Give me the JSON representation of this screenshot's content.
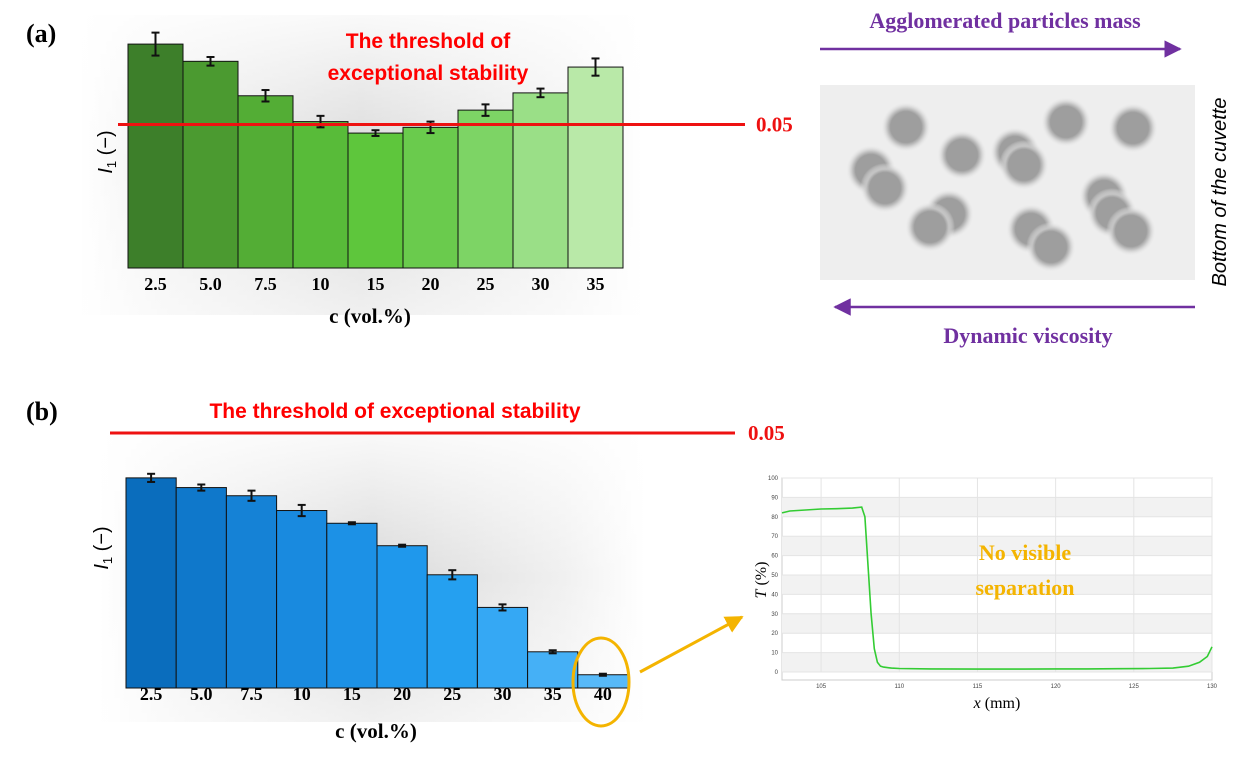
{
  "panel_a": {
    "label": "(a)",
    "threshold_text_line1": "The threshold of",
    "threshold_text_line2": "exceptional stability",
    "threshold_value": "0.05",
    "arrow_top_label": "Agglomerated particles mass",
    "arrow_bottom_label": "Dynamic viscosity",
    "cuvette_label": "Bottom of the cuvette"
  },
  "panel_b": {
    "label": "(b)",
    "threshold_text": "The threshold of exceptional stability",
    "threshold_value": "0.05",
    "annotation": "No visible separation"
  },
  "chart_data": [
    {
      "type": "bar",
      "id": "a",
      "title": "",
      "xlabel": "c (vol.%)",
      "ylabel": "I1 (−)",
      "categories": [
        "2.5",
        "5.0",
        "7.5",
        "10",
        "15",
        "20",
        "25",
        "30",
        "35"
      ],
      "values": [
        0.078,
        0.072,
        0.06,
        0.051,
        0.047,
        0.049,
        0.055,
        0.061,
        0.07
      ],
      "errors": [
        0.004,
        0.0015,
        0.002,
        0.002,
        0.001,
        0.002,
        0.002,
        0.0015,
        0.003
      ],
      "ylim": [
        0.0,
        0.085
      ],
      "threshold": 0.05,
      "colors": [
        "#3d7f2a",
        "#4b9a30",
        "#53ad35",
        "#58bb39",
        "#5ec63c",
        "#6acb4d",
        "#7dd465",
        "#9adf87",
        "#b9e9a8"
      ]
    },
    {
      "type": "bar",
      "id": "b",
      "title": "",
      "xlabel": "c (vol.%)",
      "ylabel": "I1 (−)",
      "categories": [
        "2.5",
        "5.0",
        "7.5",
        "10",
        "15",
        "20",
        "25",
        "30",
        "35",
        "40"
      ],
      "values": [
        0.0412,
        0.0393,
        0.0377,
        0.0348,
        0.0323,
        0.0279,
        0.0222,
        0.0158,
        0.0071,
        0.0026
      ],
      "errors": [
        0.0008,
        0.0006,
        0.001,
        0.0011,
        0.0002,
        0.0002,
        0.0009,
        0.0006,
        0.0003,
        0.0002
      ],
      "ylim": [
        0.0,
        0.05
      ],
      "threshold": 0.05,
      "colors": [
        "#0a6dbd",
        "#0f78cb",
        "#1582d6",
        "#198adf",
        "#1c91e6",
        "#1f98ec",
        "#25a0f0",
        "#35a8f4",
        "#45b0f6",
        "#57b9f8"
      ]
    },
    {
      "type": "line",
      "id": "transmission",
      "title": "",
      "xlabel": "x (mm)",
      "ylabel": "T (%)",
      "xlim": [
        102.5,
        130
      ],
      "ylim": [
        0,
        100
      ],
      "xticks": [
        "105",
        "110",
        "115",
        "120",
        "125",
        "130"
      ],
      "yticks": [
        "0",
        "10",
        "20",
        "30",
        "40",
        "50",
        "60",
        "70",
        "80",
        "90",
        "100"
      ],
      "series": [
        {
          "color": "#33cc33",
          "x": [
            102.5,
            103,
            104,
            105,
            106,
            107,
            107.6,
            107.8,
            108,
            108.2,
            108.4,
            108.6,
            108.8,
            109,
            109.5,
            110,
            112,
            115,
            118,
            120,
            122,
            124,
            126,
            127.5,
            128.5,
            129.2,
            129.7,
            130
          ],
          "y": [
            82,
            83,
            83.5,
            84,
            84.2,
            84.5,
            85,
            80,
            55,
            30,
            12,
            5,
            3,
            2.5,
            2,
            1.8,
            1.6,
            1.5,
            1.5,
            1.6,
            1.6,
            1.7,
            1.8,
            2,
            3,
            5,
            8,
            13
          ]
        }
      ]
    }
  ]
}
